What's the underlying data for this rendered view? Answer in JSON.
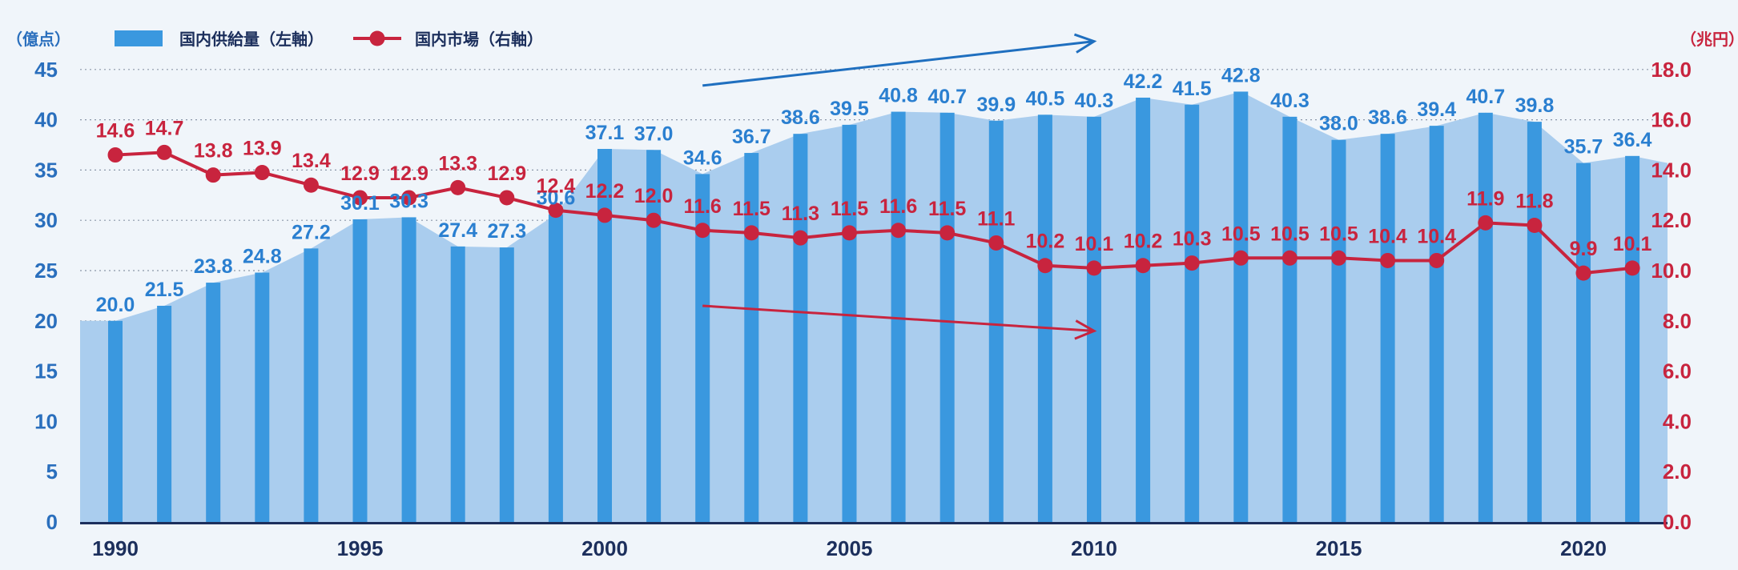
{
  "chart_data": {
    "type": "bar+line",
    "x": [
      1990,
      1991,
      1992,
      1993,
      1994,
      1995,
      1996,
      1997,
      1998,
      1999,
      2000,
      2001,
      2002,
      2003,
      2004,
      2005,
      2006,
      2007,
      2008,
      2009,
      2010,
      2011,
      2012,
      2013,
      2014,
      2015,
      2016,
      2017,
      2018,
      2019,
      2020,
      2021
    ],
    "x_tick_labels": [
      "1990",
      "1995",
      "2000",
      "2005",
      "2010",
      "2015",
      "2020"
    ],
    "series": [
      {
        "name": "国内供給量（左軸）",
        "type": "bar",
        "axis": "left",
        "color": "#3a98df",
        "values": [
          20.0,
          21.5,
          23.8,
          24.8,
          27.2,
          30.1,
          30.3,
          27.4,
          27.3,
          30.6,
          37.1,
          37.0,
          34.6,
          36.7,
          38.6,
          39.5,
          40.8,
          40.7,
          39.9,
          40.5,
          40.3,
          42.2,
          41.5,
          42.8,
          40.3,
          38.0,
          38.6,
          39.4,
          40.7,
          39.8,
          35.7,
          36.4
        ],
        "labels": [
          "20.0",
          "21.5",
          "23.8",
          "24.8",
          "27.2",
          "30.1",
          "30.3",
          "27.4",
          "27.3",
          "30.6",
          "37.1",
          "37.0",
          "34.6",
          "36.7",
          "38.6",
          "39.5",
          "40.8",
          "40.7",
          "39.9",
          "40.5",
          "40.3",
          "42.2",
          "41.5",
          "42.8",
          "40.3",
          "38.0",
          "38.6",
          "39.4",
          "40.7",
          "39.8",
          "35.7",
          "36.4"
        ]
      },
      {
        "name": "国内市場（右軸）",
        "type": "line",
        "axis": "right",
        "color": "#c8243e",
        "values": [
          14.6,
          14.7,
          13.8,
          13.9,
          13.4,
          12.9,
          12.9,
          13.3,
          12.9,
          12.4,
          12.2,
          12.0,
          11.6,
          11.5,
          11.3,
          11.5,
          11.6,
          11.5,
          11.1,
          10.2,
          10.1,
          10.2,
          10.3,
          10.5,
          10.5,
          10.5,
          10.4,
          10.4,
          11.9,
          11.8,
          9.9,
          10.1
        ],
        "labels": [
          "14.6",
          "14.7",
          "13.8",
          "13.9",
          "13.4",
          "12.9",
          "12.9",
          "13.3",
          "12.9",
          "12.4",
          "12.2",
          "12.0",
          "11.6",
          "11.5",
          "11.3",
          "11.5",
          "11.6",
          "11.5",
          "11.1",
          "10.2",
          "10.1",
          "10.2",
          "10.3",
          "10.5",
          "10.5",
          "10.5",
          "10.4",
          "10.4",
          "11.9",
          "11.8",
          "9.9",
          "10.1"
        ]
      }
    ],
    "area_end_value": 35.7,
    "y_left": {
      "unit": "（億点）",
      "ticks": [
        "0",
        "5",
        "10",
        "15",
        "20",
        "25",
        "30",
        "35",
        "40",
        "45"
      ],
      "range": [
        0,
        45
      ]
    },
    "y_right": {
      "unit": "（兆円）",
      "ticks": [
        "0.0",
        "2.0",
        "4.0",
        "6.0",
        "8.0",
        "10.0",
        "12.0",
        "14.0",
        "16.0",
        "18.0"
      ],
      "range": [
        0,
        18
      ]
    },
    "legend": {
      "position": "top-left",
      "items": [
        {
          "label": "国内供給量（左軸）",
          "kind": "bar"
        },
        {
          "label": "国内市場（右軸）",
          "kind": "line"
        }
      ]
    },
    "annotations": [
      {
        "kind": "trend-arrow",
        "color": "#1f6fbf",
        "meaning": "supply rising",
        "from_year": 2002,
        "to_year": 2010,
        "from_value_left": 43.4,
        "to_value_left": 47.8
      },
      {
        "kind": "trend-arrow",
        "color": "#c8243e",
        "meaning": "market falling",
        "from_year": 2002,
        "to_year": 2010,
        "from_value_right": 8.6,
        "to_value_right": 7.6
      }
    ],
    "grid": "horizontal-dotted"
  },
  "colors": {
    "bar": "#3a98df",
    "area": "#aacdee",
    "line": "#c8243e",
    "left_axis": "#2a6fbd",
    "right_axis": "#c8243e",
    "baseline": "#1c2f5c",
    "background": "#f0f5fa",
    "grid": "#8a96a8"
  }
}
